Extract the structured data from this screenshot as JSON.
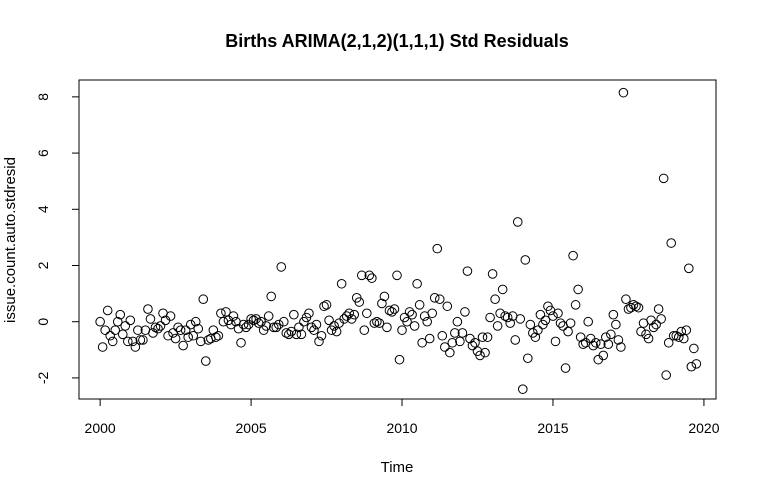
{
  "chart_data": {
    "type": "scatter",
    "title": "Births ARIMA(2,1,2)(1,1,1) Std Residuals",
    "xlabel": "Time",
    "ylabel": "issue.count.auto.stdresid",
    "xlim": [
      1999.3,
      2020.4
    ],
    "ylim": [
      -2.75,
      8.6
    ],
    "x_ticks": [
      2000,
      2005,
      2010,
      2015,
      2020
    ],
    "y_ticks": [
      -2,
      0,
      2,
      4,
      6,
      8
    ],
    "x_tick_labels": [
      "2000",
      "2005",
      "2010",
      "2015",
      "2020"
    ],
    "y_tick_labels": [
      "-2",
      "0",
      "2",
      "4",
      "6",
      "8"
    ],
    "grid": false,
    "legend": "none",
    "marker": "open-circle",
    "x_start": 2000,
    "x_step": 0.08333333,
    "values": [
      0.0,
      -0.9,
      -0.3,
      0.4,
      -0.5,
      -0.7,
      -0.3,
      0.0,
      0.25,
      -0.45,
      -0.15,
      -0.7,
      0.05,
      -0.7,
      -0.9,
      -0.3,
      -0.65,
      -0.65,
      -0.3,
      0.45,
      0.1,
      -0.4,
      -0.2,
      -0.25,
      -0.15,
      0.3,
      0.05,
      -0.5,
      0.2,
      -0.4,
      -0.6,
      -0.2,
      -0.3,
      -0.85,
      -0.3,
      -0.55,
      -0.1,
      -0.5,
      0.0,
      -0.25,
      -0.7,
      0.8,
      -1.4,
      -0.65,
      -0.6,
      -0.3,
      -0.55,
      -0.5,
      0.3,
      0.0,
      0.35,
      0.05,
      -0.1,
      0.2,
      0.0,
      -0.25,
      -0.75,
      -0.1,
      -0.2,
      -0.1,
      0.1,
      0.05,
      0.1,
      -0.05,
      0.0,
      -0.3,
      -0.15,
      0.2,
      0.9,
      -0.2,
      -0.2,
      -0.1,
      1.95,
      0.0,
      -0.4,
      -0.45,
      -0.35,
      0.25,
      -0.45,
      -0.2,
      -0.45,
      0.0,
      0.15,
      0.3,
      -0.2,
      -0.3,
      -0.1,
      -0.7,
      -0.5,
      0.55,
      0.6,
      0.05,
      -0.3,
      -0.15,
      -0.35,
      -0.05,
      1.35,
      0.1,
      0.2,
      0.3,
      0.1,
      0.25,
      0.85,
      0.7,
      1.65,
      -0.3,
      0.3,
      1.65,
      1.55,
      -0.05,
      0.0,
      -0.05,
      0.65,
      0.9,
      -0.2,
      0.4,
      0.35,
      0.45,
      1.65,
      -1.35,
      -0.3,
      0.15,
      0.0,
      0.35,
      0.25,
      -0.15,
      1.35,
      0.6,
      -0.75,
      0.2,
      0.0,
      -0.6,
      0.3,
      0.85,
      2.6,
      0.8,
      -0.5,
      -0.9,
      0.55,
      -1.1,
      -0.75,
      -0.4,
      0.0,
      -0.7,
      -0.4,
      0.35,
      1.8,
      -0.6,
      -0.85,
      -0.75,
      -1.05,
      -1.2,
      -0.55,
      -1.1,
      -0.55,
      0.15,
      1.7,
      0.8,
      -0.15,
      0.3,
      1.15,
      0.2,
      0.15,
      -0.05,
      0.2,
      -0.65,
      3.55,
      0.1,
      -2.4,
      2.2,
      -1.3,
      -0.1,
      -0.4,
      -0.55,
      -0.3,
      0.25,
      -0.1,
      0.05,
      0.55,
      0.4,
      0.2,
      -0.7,
      0.3,
      -0.05,
      -0.15,
      -1.65,
      -0.35,
      -0.05,
      2.35,
      0.6,
      1.15,
      -0.55,
      -0.8,
      -0.75,
      0.0,
      -0.6,
      -0.85,
      -0.75,
      -1.35,
      -0.8,
      -1.2,
      -0.55,
      -0.8,
      -0.45,
      0.25,
      -0.1,
      -0.65,
      -0.9,
      8.15,
      0.8,
      0.45,
      0.5,
      0.6,
      0.55,
      0.5,
      -0.35,
      -0.05,
      -0.45,
      -0.6,
      0.05,
      -0.2,
      -0.1,
      0.45,
      0.1,
      5.1,
      -1.9,
      -0.75,
      2.8,
      -0.5,
      -0.5,
      -0.55,
      -0.35,
      -0.6,
      -0.3,
      1.9,
      -1.6,
      -0.95,
      -1.5
    ]
  }
}
